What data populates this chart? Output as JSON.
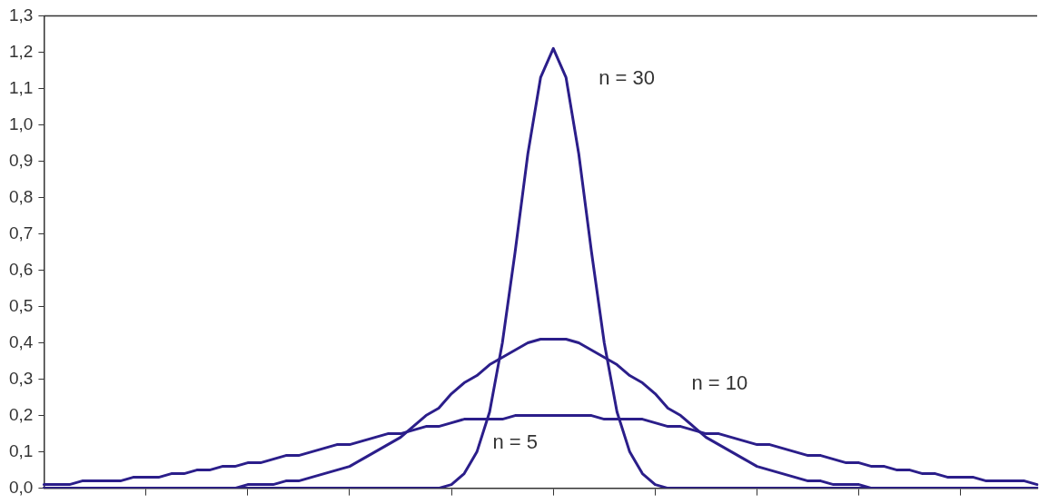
{
  "chart_data": {
    "type": "line",
    "tick_labels": "y",
    "grid": false,
    "legend": false,
    "marker": "none",
    "line_style": "solid",
    "categories": [
      null,
      null,
      null,
      null,
      null,
      null,
      null,
      null,
      null,
      null,
      null,
      null,
      null,
      null,
      null,
      null,
      null,
      null,
      null,
      null,
      null,
      null,
      null,
      null,
      null,
      null,
      null,
      null,
      null,
      null,
      null,
      null,
      null,
      null,
      null,
      null,
      null,
      null,
      null,
      null,
      null,
      null,
      null,
      null,
      null,
      null,
      null,
      null,
      null,
      null,
      null,
      null,
      null,
      null,
      null,
      null,
      null,
      null,
      null,
      null,
      null,
      null,
      null,
      null,
      null,
      null,
      null,
      null,
      null,
      null,
      null,
      null,
      null,
      null,
      null,
      null,
      null,
      null,
      null
    ],
    "ylim": [
      0,
      1.3
    ],
    "yticks": [
      {
        "value": 0,
        "label": "0,0"
      },
      {
        "value": 0.1,
        "label": "0,1"
      },
      {
        "value": 0.2,
        "label": "0,2"
      },
      {
        "value": 0.3,
        "label": "0,3"
      },
      {
        "value": 0.4,
        "label": "0,4"
      },
      {
        "value": 0.5,
        "label": "0,5"
      },
      {
        "value": 0.6,
        "label": "0,6"
      },
      {
        "value": 0.7,
        "label": "0,7"
      },
      {
        "value": 0.8,
        "label": "0,8"
      },
      {
        "value": 0.9,
        "label": "0,9"
      },
      {
        "value": 1,
        "label": "1,0"
      },
      {
        "value": 1.1,
        "label": "1,1"
      },
      {
        "value": 1.2,
        "label": "1,2"
      },
      {
        "value": 1.3,
        "label": "1,3"
      }
    ],
    "series": [
      {
        "name": "n = 30",
        "color": "#2b1e8a",
        "values": [
          0,
          0,
          0,
          0,
          0,
          0,
          0,
          0,
          0,
          0,
          0,
          0,
          0,
          0,
          0,
          0,
          0,
          0,
          0,
          0,
          0,
          0,
          0,
          0,
          0,
          0,
          0,
          0,
          0,
          0,
          0,
          0,
          0.01,
          0.04,
          0.1,
          0.21,
          0.4,
          0.65,
          0.92,
          1.13,
          1.21,
          1.13,
          0.92,
          0.65,
          0.4,
          0.21,
          0.1,
          0.04,
          0.01,
          0,
          0,
          0,
          0,
          0,
          0,
          0,
          0,
          0,
          0,
          0,
          0,
          0,
          0,
          0,
          0,
          0,
          0,
          0,
          0,
          0,
          0,
          0,
          0,
          0,
          0,
          0,
          0,
          0,
          0
        ]
      },
      {
        "name": "n = 10",
        "color": "#2b1e8a",
        "values": [
          0,
          0,
          0,
          0,
          0,
          0,
          0,
          0,
          0,
          0,
          0,
          0,
          0,
          0,
          0,
          0,
          0.01,
          0.01,
          0.01,
          0.02,
          0.02,
          0.03,
          0.04,
          0.05,
          0.06,
          0.08,
          0.1,
          0.12,
          0.14,
          0.17,
          0.2,
          0.22,
          0.26,
          0.29,
          0.31,
          0.34,
          0.36,
          0.38,
          0.4,
          0.41,
          0.41,
          0.41,
          0.4,
          0.38,
          0.36,
          0.34,
          0.31,
          0.29,
          0.26,
          0.22,
          0.2,
          0.17,
          0.14,
          0.12,
          0.1,
          0.08,
          0.06,
          0.05,
          0.04,
          0.03,
          0.02,
          0.02,
          0.01,
          0.01,
          0.01,
          0,
          0,
          0,
          0,
          0,
          0,
          0,
          0,
          0,
          0,
          0,
          0,
          0,
          0
        ]
      },
      {
        "name": "n = 5",
        "color": "#2b1e8a",
        "values": [
          0.01,
          0.01,
          0.01,
          0.02,
          0.02,
          0.02,
          0.02,
          0.03,
          0.03,
          0.03,
          0.04,
          0.04,
          0.05,
          0.05,
          0.06,
          0.06,
          0.07,
          0.07,
          0.08,
          0.09,
          0.09,
          0.1,
          0.11,
          0.12,
          0.12,
          0.13,
          0.14,
          0.15,
          0.15,
          0.16,
          0.17,
          0.17,
          0.18,
          0.19,
          0.19,
          0.19,
          0.19,
          0.2,
          0.2,
          0.2,
          0.2,
          0.2,
          0.2,
          0.2,
          0.19,
          0.19,
          0.19,
          0.19,
          0.18,
          0.17,
          0.17,
          0.16,
          0.15,
          0.15,
          0.14,
          0.13,
          0.12,
          0.12,
          0.11,
          0.1,
          0.09,
          0.09,
          0.08,
          0.07,
          0.07,
          0.06,
          0.06,
          0.05,
          0.05,
          0.04,
          0.04,
          0.03,
          0.03,
          0.03,
          0.02,
          0.02,
          0.02,
          0.02,
          0.01
        ]
      }
    ]
  }
}
